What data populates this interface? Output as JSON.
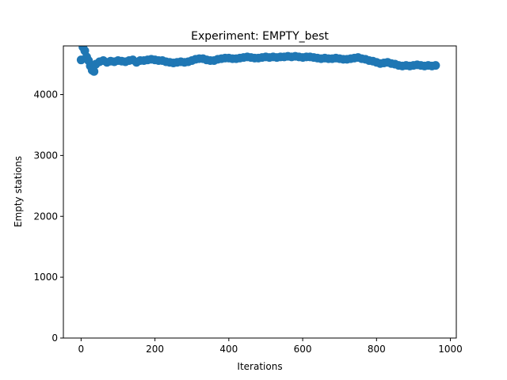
{
  "chart_data": {
    "type": "scatter",
    "title": "Experiment: EMPTY_best",
    "xlabel": "Iterations",
    "ylabel": "Empty stations",
    "xlim": [
      -48,
      1016
    ],
    "ylim": [
      0,
      4800
    ],
    "xticks": [
      0,
      200,
      400,
      600,
      800,
      1000
    ],
    "yticks": [
      0,
      1000,
      2000,
      3000,
      4000
    ],
    "grid": false,
    "legend": "none",
    "marker_color": "#1f77b4",
    "series": [
      {
        "x": [
          0,
          5,
          10,
          15,
          20,
          25,
          30,
          35,
          40,
          50,
          60,
          70,
          80,
          90,
          100,
          110,
          120,
          130,
          140,
          150,
          160,
          170,
          180,
          190,
          200,
          210,
          220,
          230,
          240,
          250,
          260,
          270,
          280,
          290,
          300,
          310,
          320,
          330,
          340,
          350,
          360,
          370,
          380,
          390,
          400,
          410,
          420,
          430,
          440,
          450,
          460,
          470,
          480,
          490,
          500,
          510,
          520,
          530,
          540,
          550,
          560,
          570,
          580,
          590,
          600,
          610,
          620,
          630,
          640,
          650,
          660,
          670,
          680,
          690,
          700,
          710,
          720,
          730,
          740,
          750,
          760,
          770,
          780,
          790,
          800,
          810,
          820,
          830,
          840,
          850,
          860,
          870,
          880,
          890,
          900,
          910,
          920,
          930,
          940,
          950,
          960
        ],
        "y": [
          4570,
          4780,
          4720,
          4620,
          4560,
          4470,
          4400,
          4380,
          4500,
          4540,
          4560,
          4530,
          4550,
          4540,
          4560,
          4550,
          4540,
          4560,
          4570,
          4530,
          4560,
          4560,
          4570,
          4580,
          4570,
          4560,
          4560,
          4540,
          4530,
          4520,
          4530,
          4540,
          4530,
          4540,
          4560,
          4580,
          4590,
          4590,
          4570,
          4560,
          4560,
          4580,
          4590,
          4600,
          4600,
          4590,
          4590,
          4600,
          4610,
          4620,
          4610,
          4600,
          4600,
          4610,
          4620,
          4610,
          4620,
          4610,
          4620,
          4620,
          4630,
          4620,
          4630,
          4620,
          4610,
          4620,
          4620,
          4610,
          4600,
          4590,
          4600,
          4590,
          4590,
          4600,
          4590,
          4580,
          4580,
          4590,
          4600,
          4610,
          4590,
          4580,
          4560,
          4550,
          4530,
          4510,
          4520,
          4530,
          4510,
          4500,
          4480,
          4470,
          4480,
          4470,
          4480,
          4490,
          4480,
          4470,
          4480,
          4470,
          4480
        ]
      }
    ]
  }
}
